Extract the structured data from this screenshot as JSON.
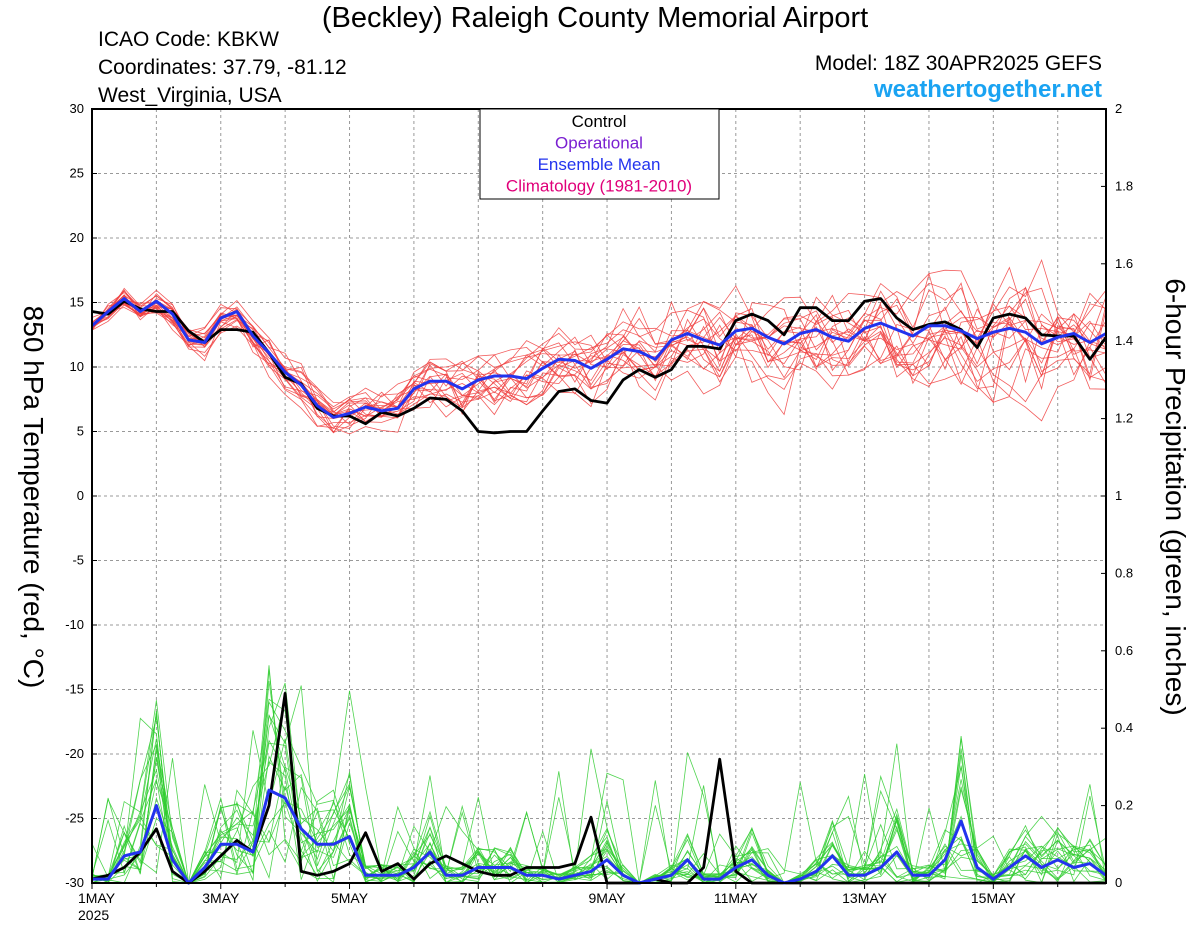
{
  "header": {
    "title": "(Beckley) Raleigh County Memorial Airport",
    "icao": "ICAO Code: KBKW",
    "coords": "Coordinates: 37.79, -81.12",
    "region": "West_Virginia, USA",
    "model": "Model: 18Z 30APR2025 GEFS",
    "site": "weathertogether.net"
  },
  "colors": {
    "control": "#000000",
    "operational": "#7a1fd1",
    "mean": "#2233ee",
    "climatology": "#e0007a",
    "temp_members": "#f04040",
    "precip_members": "#30cc30",
    "site": "#1aa3f2"
  },
  "chart_data": {
    "type": "line",
    "year_label": "2025",
    "x_ticks": [
      "1MAY",
      "3MAY",
      "5MAY",
      "7MAY",
      "9MAY",
      "11MAY",
      "13MAY",
      "15MAY"
    ],
    "x_range_days": [
      0,
      15.75
    ],
    "step_days": 0.25,
    "grid": true,
    "legend_placement": "top-center",
    "legend": [
      "Control",
      "Operational",
      "Ensemble Mean",
      "Climatology (1981-2010)"
    ],
    "ylabel_left": "850 hPa Temperature (red, °C)",
    "ylabel_right": "6-hour Precipitation (green, inches)",
    "y_left": {
      "range": [
        -30,
        30
      ],
      "ticks": [
        "30",
        "25",
        "20",
        "15",
        "10",
        "5",
        "0",
        "-5",
        "-10",
        "-15",
        "-20",
        "-25",
        "-30"
      ]
    },
    "y_right": {
      "range": [
        0,
        2
      ],
      "ticks": [
        "2",
        "1.8",
        "1.6",
        "1.4",
        "1.2",
        "1",
        "0.8",
        "0.6",
        "0.4",
        "0.2",
        "0"
      ]
    },
    "temp_control": [
      14.3,
      14.1,
      15.1,
      14.5,
      14.3,
      14.3,
      12.8,
      11.9,
      12.9,
      12.9,
      12.7,
      11.1,
      9.2,
      8.7,
      6.8,
      6.2,
      6.2,
      5.6,
      6.5,
      6.2,
      6.8,
      7.6,
      7.5,
      6.6,
      5.0,
      4.9,
      5.0,
      5.0,
      6.6,
      8.1,
      8.3,
      7.4,
      7.2,
      9.0,
      9.8,
      9.2,
      9.8,
      11.6,
      11.6,
      11.4,
      13.6,
      14.1,
      13.6,
      12.5,
      14.6,
      14.6,
      13.6,
      13.6,
      15.1,
      15.3,
      13.8,
      12.9,
      13.3,
      13.5,
      12.9,
      11.5,
      13.8,
      14.1,
      13.8,
      12.5,
      12.4,
      12.4,
      10.6,
      12.3
    ],
    "temp_mean": [
      13.2,
      14.3,
      15.3,
      14.3,
      15.1,
      14.1,
      12.1,
      11.9,
      13.8,
      14.3,
      12.4,
      11.1,
      9.6,
      8.6,
      7.0,
      6.1,
      6.4,
      6.9,
      6.6,
      6.8,
      8.3,
      8.9,
      8.9,
      8.3,
      9.0,
      9.3,
      9.3,
      9.1,
      9.9,
      10.6,
      10.5,
      9.9,
      10.6,
      11.4,
      11.2,
      10.6,
      12.1,
      12.6,
      12.1,
      11.7,
      12.8,
      13.0,
      12.3,
      11.8,
      12.6,
      12.9,
      12.3,
      12.0,
      13.0,
      13.4,
      12.9,
      12.4,
      13.2,
      13.2,
      12.8,
      12.2,
      12.7,
      13.0,
      12.7,
      11.8,
      12.3,
      12.6,
      11.9,
      12.6
    ],
    "precip_control": [
      0.01,
      0.02,
      0.04,
      0.08,
      0.14,
      0.03,
      0.0,
      0.03,
      0.07,
      0.11,
      0.08,
      0.2,
      0.49,
      0.03,
      0.02,
      0.03,
      0.05,
      0.13,
      0.03,
      0.05,
      0.01,
      0.05,
      0.07,
      0.05,
      0.03,
      0.02,
      0.02,
      0.04,
      0.04,
      0.04,
      0.05,
      0.17,
      0.0,
      0.0,
      0.0,
      0.01,
      0.0,
      0.0,
      0.04,
      0.32,
      0.03,
      0.0,
      0.0,
      0.0,
      0.0,
      0.0,
      0.0,
      0.0,
      0.0,
      0.0,
      0.0,
      0.0,
      0.0,
      0.0,
      0.0,
      0.0,
      0.0,
      0.0,
      0.0,
      0.0,
      0.0,
      0.0,
      0.0,
      0.0
    ],
    "precip_mean": [
      0.01,
      0.01,
      0.07,
      0.08,
      0.2,
      0.06,
      0.0,
      0.04,
      0.1,
      0.1,
      0.08,
      0.24,
      0.22,
      0.14,
      0.1,
      0.1,
      0.12,
      0.02,
      0.02,
      0.02,
      0.04,
      0.08,
      0.02,
      0.02,
      0.04,
      0.04,
      0.04,
      0.02,
      0.02,
      0.01,
      0.02,
      0.03,
      0.06,
      0.02,
      0.0,
      0.01,
      0.02,
      0.06,
      0.01,
      0.01,
      0.04,
      0.06,
      0.02,
      0.0,
      0.01,
      0.03,
      0.07,
      0.02,
      0.02,
      0.04,
      0.08,
      0.02,
      0.02,
      0.06,
      0.16,
      0.04,
      0.01,
      0.04,
      0.07,
      0.04,
      0.06,
      0.04,
      0.05,
      0.02
    ]
  }
}
